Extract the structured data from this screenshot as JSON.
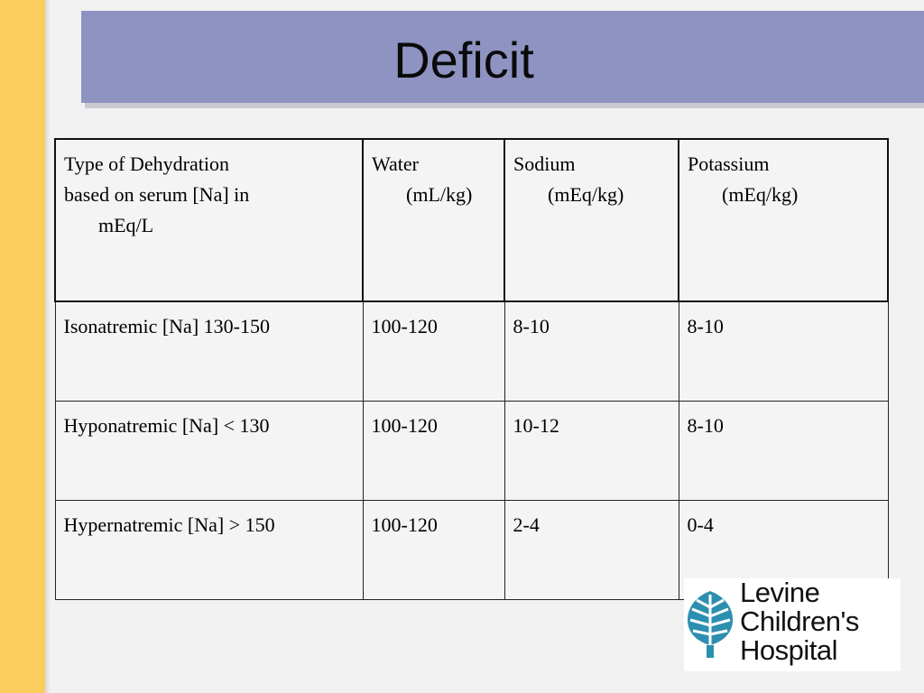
{
  "slide": {
    "title": "Deficit"
  },
  "table": {
    "headers": [
      {
        "line1": "Type of Dehydration",
        "line2": "based on serum [Na] in",
        "line3": "mEq/L"
      },
      {
        "line1": "Water",
        "line2": "(mL/kg)"
      },
      {
        "line1": "Sodium",
        "line2": "(mEq/kg)"
      },
      {
        "line1": "Potassium",
        "line2": "(mEq/kg)"
      }
    ],
    "rows": [
      [
        "Isonatremic [Na]  130-150",
        "100-120",
        "8-10",
        "8-10"
      ],
      [
        "Hyponatremic [Na]   < 130",
        "100-120",
        "10-12",
        "8-10"
      ],
      [
        "Hypernatremic [Na]  > 150",
        "100-120",
        "2-4",
        "0-4"
      ]
    ]
  },
  "logo": {
    "line1": "Levine",
    "line2": "Children's",
    "line3": "Hospital",
    "icon": "tree-leaf-icon",
    "colors": {
      "mark": "#2d8fb0",
      "accent": "#e23b2e",
      "accent2": "#f3c11a"
    }
  },
  "colors": {
    "left_bar": "#f9cd5e",
    "title_band": "#8e93c2",
    "background": "#f1f1f1"
  }
}
